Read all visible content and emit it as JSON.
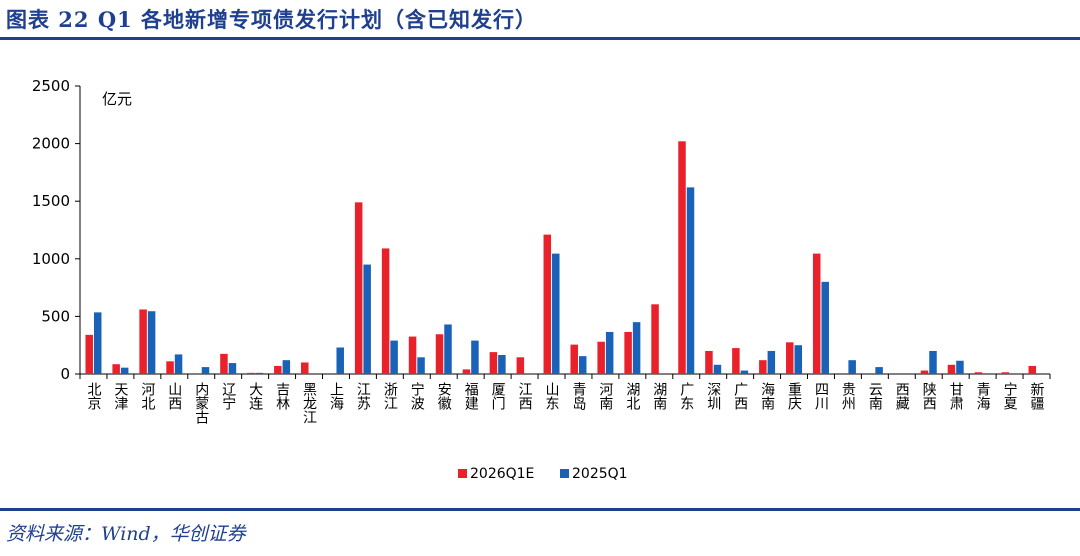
{
  "figure": {
    "title": "图表 22   Q1 各地新增专项债发行计划（含已知发行）",
    "source": "资料来源：Wind，华创证券"
  },
  "colors": {
    "series_2026": "#e8212a",
    "series_2025": "#1a62b7",
    "header_blue": "#1f3f8f"
  },
  "chart_data": {
    "type": "bar",
    "ylabel": "亿元",
    "ylim": [
      0,
      2500
    ],
    "yticks": [
      0,
      500,
      1000,
      1500,
      2000,
      2500
    ],
    "grid": false,
    "legend": "bottom-center",
    "categories": [
      "北京",
      "天津",
      "河北",
      "山西",
      "内蒙古",
      "辽宁",
      "大连",
      "吉林",
      "黑龙江",
      "上海",
      "江苏",
      "浙江",
      "宁波",
      "安徽",
      "福建",
      "厦门",
      "江西",
      "山东",
      "青岛",
      "河南",
      "湖北",
      "湖南",
      "广东",
      "深圳",
      "广西",
      "海南",
      "重庆",
      "四川",
      "贵州",
      "云南",
      "西藏",
      "陕西",
      "甘肃",
      "青海",
      "宁夏",
      "新疆"
    ],
    "series": [
      {
        "name": "2026Q1E",
        "values": [
          340,
          85,
          560,
          110,
          0,
          175,
          10,
          70,
          100,
          0,
          1490,
          1090,
          325,
          345,
          40,
          190,
          145,
          1210,
          255,
          280,
          365,
          605,
          2020,
          200,
          225,
          120,
          275,
          1045,
          0,
          0,
          0,
          30,
          80,
          15,
          15,
          70
        ]
      },
      {
        "name": "2025Q1",
        "values": [
          535,
          55,
          545,
          170,
          60,
          95,
          10,
          120,
          0,
          230,
          950,
          290,
          145,
          430,
          290,
          165,
          0,
          1045,
          155,
          365,
          450,
          0,
          1620,
          80,
          30,
          200,
          250,
          800,
          120,
          60,
          0,
          200,
          115,
          0,
          0,
          0
        ]
      }
    ]
  }
}
